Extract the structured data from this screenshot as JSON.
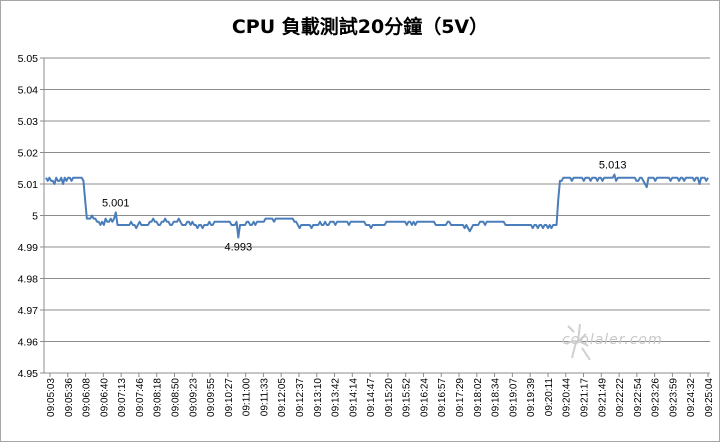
{
  "chart_data": {
    "type": "line",
    "title": "CPU 負載測試20分鐘（5V）",
    "xlabel": "",
    "ylabel": "",
    "ylim": [
      4.95,
      5.05
    ],
    "yticks": [
      "5.05",
      "5.04",
      "5.03",
      "5.02",
      "5.01",
      "5",
      "4.99",
      "4.98",
      "4.97",
      "4.96",
      "4.95"
    ],
    "grid": "horizontal",
    "legend": "none",
    "line_color": "#4a7ebb",
    "x_tick_labels": [
      "09:05:03",
      "09:05:36",
      "09:06:08",
      "09:06:40",
      "09:07:13",
      "09:07:46",
      "09:08:18",
      "09:08:50",
      "09:09:23",
      "09:09:55",
      "09:10:27",
      "09:11:00",
      "09:11:33",
      "09:12:05",
      "09:12:37",
      "09:13:10",
      "09:13:42",
      "09:14:14",
      "09:14:47",
      "09:15:20",
      "09:15:52",
      "09:16:24",
      "09:16:57",
      "09:17:29",
      "09:18:02",
      "09:18:34",
      "09:19:07",
      "09:19:39",
      "09:20:11",
      "09:20:44",
      "09:21:17",
      "09:21:49",
      "09:22:22",
      "09:22:54",
      "09:23:26",
      "09:23:59",
      "09:24:32",
      "09:25:04"
    ],
    "series": [
      {
        "values": [
          5.012,
          5.011,
          5.012,
          5.011,
          5.011,
          5.01,
          5.012,
          5.011,
          5.011,
          5.012,
          5.01,
          5.012,
          5.011,
          5.012,
          5.012,
          5.011,
          5.012,
          5.012,
          5.012,
          5.012,
          5.012,
          5.012,
          5.011,
          5.005,
          4.999,
          4.999,
          4.999,
          5.0,
          4.999,
          4.999,
          4.998,
          4.998,
          4.997,
          4.998,
          4.997,
          4.999,
          4.998,
          4.998,
          4.999,
          4.998,
          4.999,
          5.001,
          4.997,
          4.997,
          4.997,
          4.997,
          4.997,
          4.997,
          4.997,
          4.997,
          4.998,
          4.997,
          4.997,
          4.996,
          4.997,
          4.998,
          4.997,
          4.997,
          4.997,
          4.997,
          4.997,
          4.998,
          4.998,
          4.999,
          4.998,
          4.998,
          4.997,
          4.997,
          4.998,
          4.998,
          4.999,
          4.998,
          4.998,
          4.997,
          4.997,
          4.998,
          4.998,
          4.998,
          4.999,
          4.998,
          4.997,
          4.997,
          4.997,
          4.998,
          4.998,
          4.997,
          4.998,
          4.997,
          4.997,
          4.996,
          4.997,
          4.997,
          4.996,
          4.997,
          4.997,
          4.997,
          4.998,
          4.997,
          4.997,
          4.998,
          4.998,
          4.998,
          4.998,
          4.998,
          4.998,
          4.998,
          4.998,
          4.998,
          4.998,
          4.997,
          4.997,
          4.997,
          4.998,
          4.993,
          4.997,
          4.997,
          4.997,
          4.997,
          4.998,
          4.998,
          4.997,
          4.997,
          4.998,
          4.997,
          4.998,
          4.998,
          4.998,
          4.998,
          4.998,
          4.999,
          4.999,
          4.999,
          4.999,
          4.999,
          4.998,
          4.999,
          4.999,
          4.999,
          4.999,
          4.999,
          4.999,
          4.999,
          4.999,
          4.999,
          4.999,
          4.999,
          4.998,
          4.998,
          4.997,
          4.996,
          4.997,
          4.997,
          4.997,
          4.997,
          4.997,
          4.997,
          4.996,
          4.997,
          4.997,
          4.997,
          4.997,
          4.998,
          4.997,
          4.997,
          4.998,
          4.997,
          4.997,
          4.998,
          4.998,
          4.998,
          4.997,
          4.998,
          4.998,
          4.998,
          4.998,
          4.998,
          4.998,
          4.998,
          4.997,
          4.998,
          4.998,
          4.998,
          4.998,
          4.998,
          4.998,
          4.998,
          4.998,
          4.998,
          4.997,
          4.997,
          4.997,
          4.996,
          4.997,
          4.997,
          4.997,
          4.997,
          4.997,
          4.997,
          4.997,
          4.997,
          4.998,
          4.998,
          4.998,
          4.998,
          4.998,
          4.998,
          4.998,
          4.998,
          4.998,
          4.998,
          4.998,
          4.998,
          4.997,
          4.998,
          4.998,
          4.997,
          4.998,
          4.997,
          4.998,
          4.998,
          4.998,
          4.998,
          4.998,
          4.998,
          4.998,
          4.998,
          4.998,
          4.998,
          4.998,
          4.997,
          4.997,
          4.997,
          4.997,
          4.997,
          4.997,
          4.997,
          4.998,
          4.998,
          4.997,
          4.997,
          4.997,
          4.997,
          4.997,
          4.997,
          4.997,
          4.997,
          4.996,
          4.997,
          4.996,
          4.995,
          4.996,
          4.997,
          4.997,
          4.997,
          4.997,
          4.998,
          4.998,
          4.998,
          4.997,
          4.998,
          4.998,
          4.998,
          4.998,
          4.998,
          4.998,
          4.998,
          4.998,
          4.998,
          4.998,
          4.998,
          4.997,
          4.997,
          4.997,
          4.997,
          4.997,
          4.997,
          4.997,
          4.997,
          4.997,
          4.997,
          4.997,
          4.997,
          4.997,
          4.997,
          4.997,
          4.997,
          4.996,
          4.997,
          4.997,
          4.996,
          4.997,
          4.997,
          4.996,
          4.997,
          4.997,
          4.996,
          4.997,
          4.996,
          4.997,
          4.997,
          4.997,
          5.005,
          5.011,
          5.011,
          5.012,
          5.012,
          5.012,
          5.012,
          5.012,
          5.011,
          5.012,
          5.012,
          5.012,
          5.012,
          5.012,
          5.012,
          5.011,
          5.012,
          5.012,
          5.012,
          5.011,
          5.012,
          5.012,
          5.012,
          5.011,
          5.012,
          5.012,
          5.011,
          5.012,
          5.012,
          5.012,
          5.012,
          5.012,
          5.012,
          5.013,
          5.011,
          5.012,
          5.012,
          5.012,
          5.012,
          5.012,
          5.012,
          5.012,
          5.012,
          5.012,
          5.012,
          5.012,
          5.011,
          5.011,
          5.012,
          5.012,
          5.011,
          5.01,
          5.009,
          5.012,
          5.012,
          5.012,
          5.012,
          5.011,
          5.012,
          5.012,
          5.012,
          5.012,
          5.012,
          5.012,
          5.012,
          5.012,
          5.011,
          5.012,
          5.012,
          5.012,
          5.012,
          5.011,
          5.012,
          5.012,
          5.011,
          5.012,
          5.012,
          5.012,
          5.012,
          5.012,
          5.011,
          5.012,
          5.012,
          5.01,
          5.012,
          5.012,
          5.012,
          5.011,
          5.012
        ]
      }
    ],
    "annotations": [
      {
        "text": "5.001",
        "value": 5.001,
        "index": 41
      },
      {
        "text": "4.993",
        "value": 4.993,
        "index": 113
      },
      {
        "text": "5.013",
        "value": 5.013,
        "index": 333
      }
    ]
  }
}
